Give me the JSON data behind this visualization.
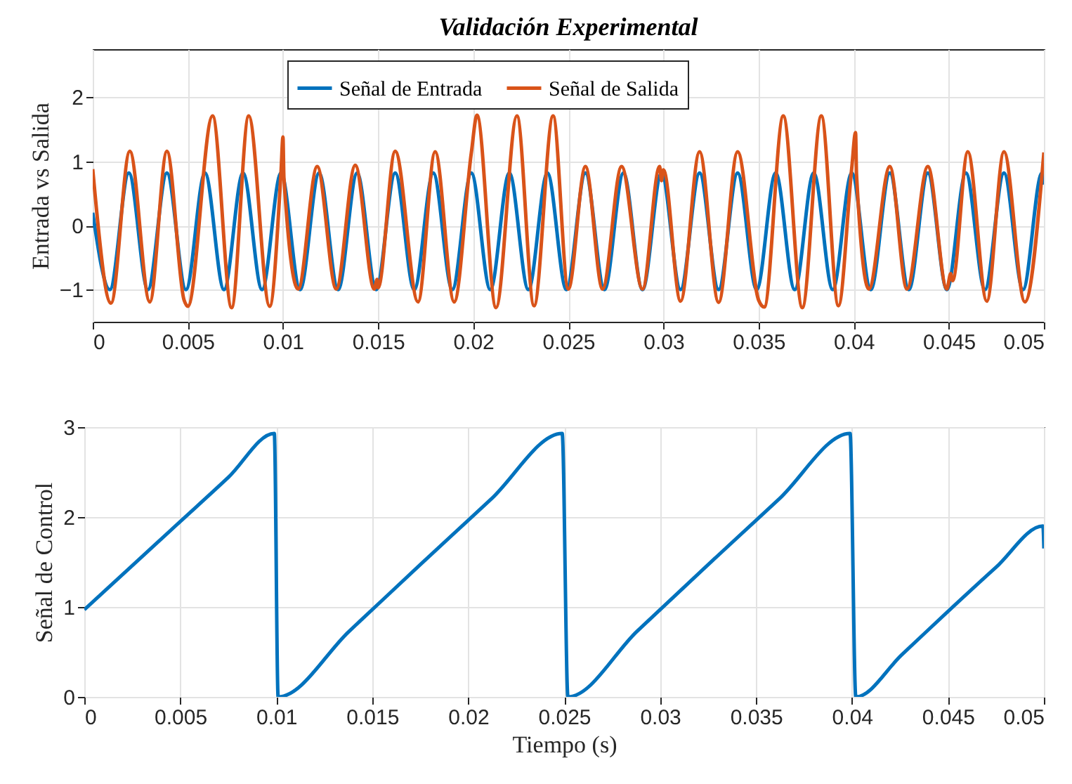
{
  "chart_data": [
    {
      "type": "line",
      "title": "Validación Experimental",
      "ylabel": "Entrada vs Salida",
      "xlim": [
        0,
        0.05
      ],
      "xticks": [
        0,
        0.005,
        0.01,
        0.015,
        0.02,
        0.025,
        0.03,
        0.035,
        0.04,
        0.045,
        0.05
      ],
      "ylim": [
        -1.5,
        2.75
      ],
      "yticks": [
        -1,
        0,
        1,
        2
      ],
      "grid": true,
      "legend": "top",
      "line_style": "solid",
      "series": [
        {
          "name": "Señal de Entrada",
          "color": "#0072bd",
          "x": [
            0,
            0.0009,
            0.0019,
            0.0029,
            0.0039,
            0.0049,
            0.0059,
            0.0069,
            0.0079,
            0.0089,
            0.0099,
            0.0109,
            0.0119,
            0.0129,
            0.0139,
            0.0149,
            0.0159,
            0.0169,
            0.0179,
            0.0189,
            0.0199,
            0.0209,
            0.0219,
            0.0229,
            0.0239,
            0.0249,
            0.0259,
            0.0269,
            0.0279,
            0.0289,
            0.0299,
            0.0309,
            0.0319,
            0.0329,
            0.0339,
            0.0349,
            0.0359,
            0.0369,
            0.0379,
            0.0389,
            0.0399,
            0.0409,
            0.0419,
            0.0429,
            0.0439,
            0.0449,
            0.0459,
            0.0469,
            0.0479,
            0.0489,
            0.0499,
            0.05
          ],
          "values": [
            0.2,
            -1,
            0.82,
            -1,
            0.82,
            -1,
            0.82,
            -1,
            0.82,
            -1,
            0.82,
            -1,
            0.82,
            -1,
            0.82,
            -1,
            0.82,
            -1,
            0.82,
            -1,
            0.82,
            -1,
            0.82,
            -1,
            0.82,
            -1,
            0.82,
            -1,
            0.82,
            -1,
            0.82,
            -1,
            0.82,
            -1,
            0.82,
            -1,
            0.82,
            -1,
            0.82,
            -1,
            0.82,
            -1,
            0.82,
            -1,
            0.82,
            -1,
            0.82,
            -1,
            0.82,
            -1,
            0.82,
            0.64
          ]
        },
        {
          "name": "Señal de Salida",
          "color": "#d95319",
          "x": [
            0,
            0.00096,
            0.00195,
            0.003,
            0.0039,
            0.0048,
            0.005,
            0.0063,
            0.0073,
            0.0082,
            0.0093,
            0.0099,
            0.01,
            0.01005,
            0.0108,
            0.0118,
            0.0128,
            0.0138,
            0.0148,
            0.01495,
            0.015,
            0.0159,
            0.0171,
            0.018,
            0.019,
            0.0199,
            0.0202,
            0.0212,
            0.0223,
            0.0232,
            0.0242,
            0.025,
            0.0259,
            0.0268,
            0.0278,
            0.0289,
            0.0298,
            0.0299,
            0.03,
            0.0309,
            0.0319,
            0.0329,
            0.0339,
            0.035,
            0.0353,
            0.0363,
            0.0373,
            0.0383,
            0.0392,
            0.0399,
            0.0401,
            0.04015,
            0.0408,
            0.0419,
            0.0428,
            0.0439,
            0.0449,
            0.0451,
            0.0452,
            0.046,
            0.047,
            0.0479,
            0.049,
            0.05
          ],
          "values": [
            0.88,
            -1.21,
            1.16,
            -1.19,
            1.16,
            -1.16,
            -1.26,
            1.71,
            -1.28,
            1.71,
            -1.26,
            0.85,
            1.38,
            0.75,
            -0.99,
            0.92,
            -0.99,
            0.94,
            -0.99,
            -0.84,
            -0.97,
            1.16,
            -1.19,
            1.15,
            -1.19,
            1.13,
            1.72,
            -1.28,
            1.71,
            -1.25,
            1.71,
            -0.99,
            0.92,
            -0.99,
            0.92,
            -0.99,
            0.92,
            0.7,
            0.87,
            -1.18,
            1.15,
            -1.2,
            1.15,
            -1.16,
            -1.27,
            1.71,
            -1.28,
            1.71,
            -1.25,
            0.9,
            1.45,
            0.8,
            -0.99,
            0.92,
            -0.99,
            0.92,
            -0.99,
            -0.75,
            -0.86,
            1.15,
            -1.18,
            1.15,
            -1.19,
            1.14
          ]
        }
      ]
    },
    {
      "type": "line",
      "xlabel": "Tiempo (s)",
      "ylabel": "Señal de Control",
      "xlim": [
        0,
        0.05
      ],
      "xticks": [
        0,
        0.005,
        0.01,
        0.015,
        0.02,
        0.025,
        0.03,
        0.035,
        0.04,
        0.045,
        0.05
      ],
      "ylim": [
        0,
        3
      ],
      "yticks": [
        0,
        1,
        2,
        3
      ],
      "grid": true,
      "line_style": "solid",
      "series": [
        {
          "color": "#0072bd",
          "x": [
            0,
            0.0025,
            0.005,
            0.0075,
            0.0099,
            0.0101,
            0.0138,
            0.0175,
            0.0212,
            0.0249,
            0.0252,
            0.0288,
            0.0325,
            0.0362,
            0.0399,
            0.0402,
            0.0426,
            0.045,
            0.0475,
            0.04995,
            0.05
          ],
          "values": [
            0.97,
            1.46,
            1.95,
            2.44,
            2.93,
            0,
            0.73,
            1.47,
            2.2,
            2.93,
            0,
            0.73,
            1.47,
            2.2,
            2.93,
            0,
            0.47,
            0.95,
            1.44,
            1.9,
            1.65
          ]
        }
      ]
    }
  ]
}
